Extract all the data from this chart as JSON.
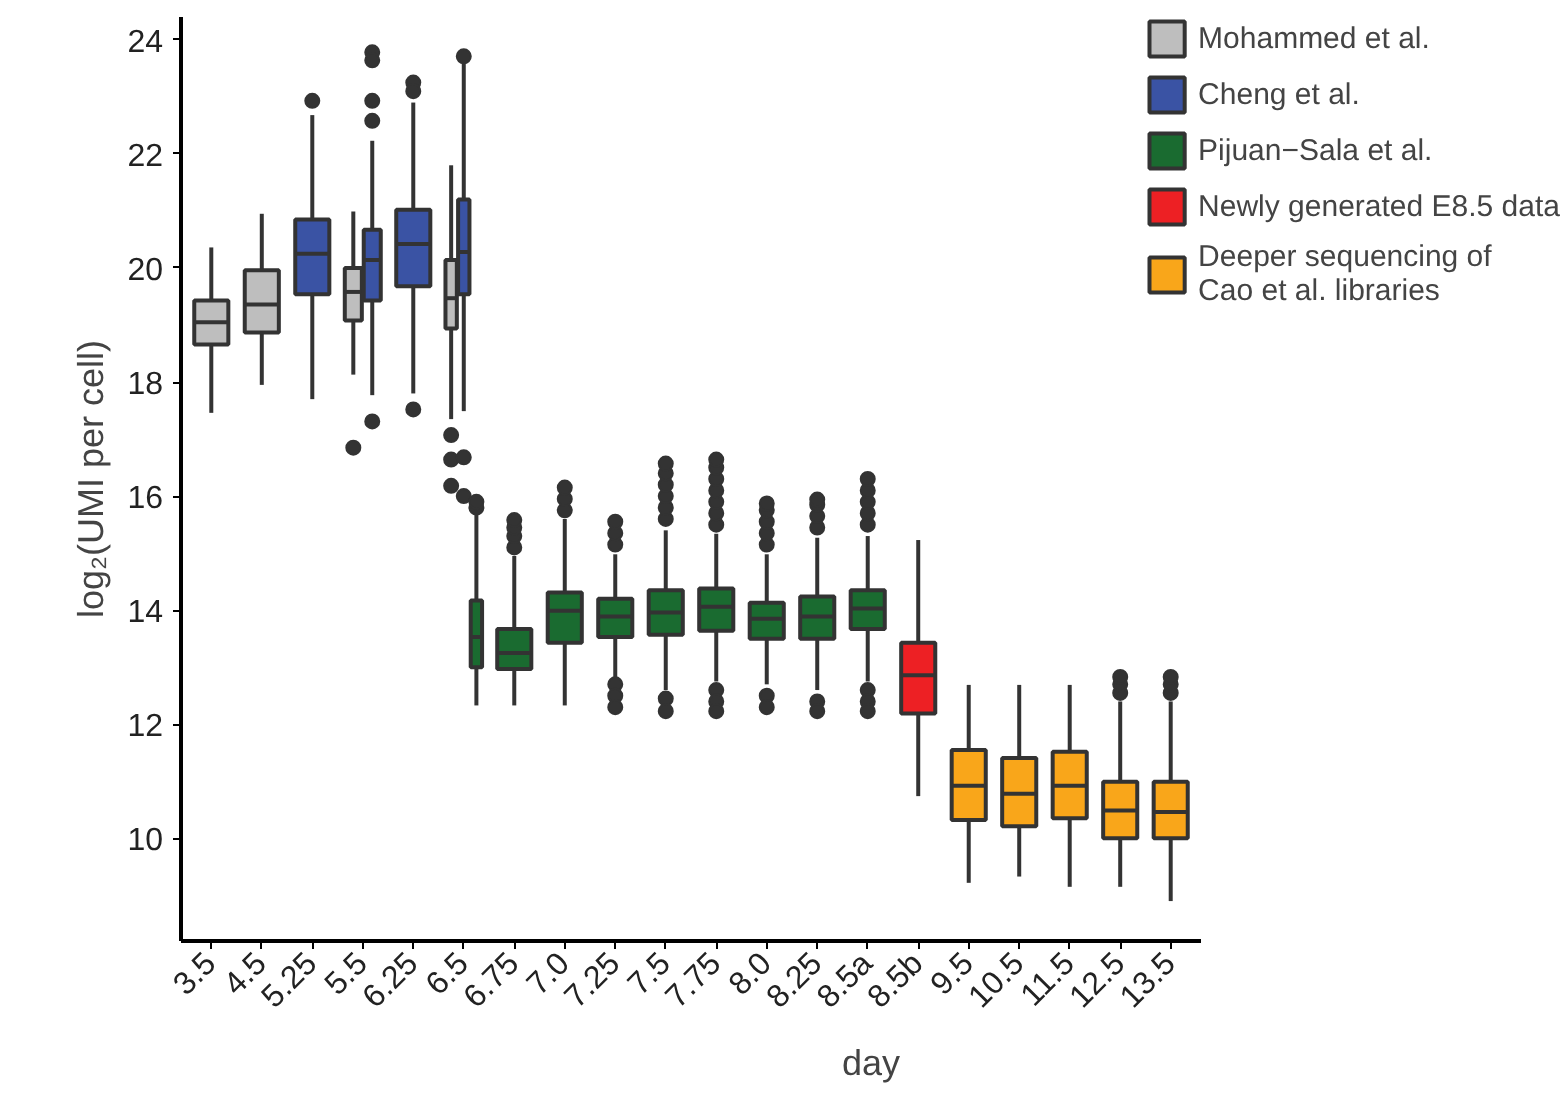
{
  "chart_data": {
    "type": "box",
    "xlabel": "day",
    "ylabel": "log₂(UMI per cell)",
    "categories": [
      "3.5",
      "4.5",
      "5.25",
      "5.5",
      "6.25",
      "6.5",
      "6.75",
      "7.0",
      "7.25",
      "7.5",
      "7.75",
      "8.0",
      "8.25",
      "8.5a",
      "8.5b",
      "9.5",
      "10.5",
      "11.5",
      "12.5",
      "13.5"
    ],
    "ylim": [
      8.2,
      24.4
    ],
    "yticks": [
      10,
      12,
      14,
      16,
      18,
      20,
      22,
      24
    ],
    "grid": false,
    "legend": "right",
    "series": [
      {
        "name": "Mohammed et al.",
        "color": "#bebebe",
        "boxes": [
          {
            "low": 17.46,
            "q1": 18.66,
            "median": 19.05,
            "q3": 19.43,
            "high": 20.36
          },
          {
            "low": 17.95,
            "q1": 18.87,
            "median": 19.36,
            "q3": 19.96,
            "high": 20.95
          },
          null,
          {
            "low": 18.13,
            "q1": 19.08,
            "median": 19.58,
            "q3": 20.0,
            "high": 20.99,
            "outliers": [
              16.85
            ]
          },
          null,
          {
            "low": 17.35,
            "q1": 18.94,
            "median": 19.47,
            "q3": 20.14,
            "high": 21.8,
            "outliers": [
              17.07,
              16.64,
              16.18
            ]
          },
          null,
          null,
          null,
          null,
          null,
          null,
          null,
          null,
          null,
          null,
          null,
          null,
          null,
          null
        ]
      },
      {
        "name": "Cheng et al.",
        "color": "#3a53a4",
        "boxes": [
          null,
          null,
          {
            "low": 17.7,
            "q1": 19.54,
            "median": 20.25,
            "q3": 20.85,
            "high": 22.68,
            "outliers": [
              22.93
            ]
          },
          {
            "low": 17.77,
            "q1": 19.43,
            "median": 20.14,
            "q3": 20.67,
            "high": 22.23,
            "outliers": [
              23.78,
              23.64,
              22.93,
              22.58,
              17.31
            ]
          },
          {
            "low": 17.8,
            "q1": 19.68,
            "median": 20.42,
            "q3": 21.02,
            "high": 22.9,
            "outliers": [
              23.25,
              23.1,
              17.52
            ]
          },
          {
            "low": 17.49,
            "q1": 19.54,
            "median": 20.28,
            "q3": 21.2,
            "high": 23.6,
            "outliers": [
              23.71,
              16.68,
              16.0
            ]
          },
          null,
          null,
          null,
          null,
          null,
          null,
          null,
          null,
          null,
          null,
          null,
          null,
          null,
          null
        ]
      },
      {
        "name": "Pijuan−Sala et al.",
        "color": "#1a6b30",
        "boxes": [
          null,
          null,
          null,
          null,
          null,
          {
            "low": 12.33,
            "q1": 13.0,
            "median": 13.53,
            "q3": 14.17,
            "high": 15.69,
            "outliers": [
              15.8,
              15.9
            ]
          },
          {
            "low": 12.33,
            "q1": 12.97,
            "median": 13.25,
            "q3": 13.67,
            "high": 14.95,
            "outliers": [
              15.1,
              15.3,
              15.45,
              15.58
            ]
          },
          {
            "low": 12.33,
            "q1": 13.43,
            "median": 13.99,
            "q3": 14.31,
            "high": 15.6,
            "outliers": [
              15.75,
              15.95,
              16.15
            ]
          },
          {
            "low": 12.8,
            "q1": 13.53,
            "median": 13.89,
            "q3": 14.2,
            "high": 14.98,
            "outliers": [
              15.15,
              15.35,
              15.55,
              12.7,
              12.5,
              12.3
            ]
          },
          {
            "low": 12.6,
            "q1": 13.57,
            "median": 13.96,
            "q3": 14.35,
            "high": 15.4,
            "outliers": [
              15.6,
              15.8,
              16.0,
              16.2,
              16.4,
              16.57,
              12.45,
              12.23
            ]
          },
          {
            "low": 12.75,
            "q1": 13.64,
            "median": 14.06,
            "q3": 14.38,
            "high": 15.34,
            "outliers": [
              15.5,
              15.7,
              15.9,
              16.1,
              16.3,
              16.5,
              16.64,
              12.6,
              12.4,
              12.23
            ]
          },
          {
            "low": 12.7,
            "q1": 13.5,
            "median": 13.85,
            "q3": 14.13,
            "high": 14.98,
            "outliers": [
              15.15,
              15.35,
              15.55,
              15.75,
              15.87,
              12.5,
              12.3
            ]
          },
          {
            "low": 12.6,
            "q1": 13.5,
            "median": 13.89,
            "q3": 14.24,
            "high": 15.27,
            "outliers": [
              15.45,
              15.65,
              15.85,
              15.94,
              12.4,
              12.23
            ]
          },
          {
            "low": 12.75,
            "q1": 13.67,
            "median": 14.03,
            "q3": 14.35,
            "high": 15.3,
            "outliers": [
              15.5,
              15.7,
              15.9,
              16.1,
              16.3,
              12.6,
              12.4,
              12.23
            ]
          },
          null,
          null,
          null,
          null,
          null,
          null
        ]
      },
      {
        "name": "Newly generated E8.5 data",
        "color": "#ed2024",
        "boxes": [
          null,
          null,
          null,
          null,
          null,
          null,
          null,
          null,
          null,
          null,
          null,
          null,
          null,
          null,
          {
            "low": 10.74,
            "q1": 12.19,
            "median": 12.86,
            "q3": 13.43,
            "high": 15.23
          },
          null,
          null,
          null,
          null,
          null
        ]
      },
      {
        "name": "Deeper sequencing of\nCao et al. libraries",
        "color": "#f9a61a",
        "boxes": [
          null,
          null,
          null,
          null,
          null,
          null,
          null,
          null,
          null,
          null,
          null,
          null,
          null,
          null,
          null,
          {
            "low": 9.22,
            "q1": 10.32,
            "median": 10.92,
            "q3": 11.55,
            "high": 12.69
          },
          {
            "low": 9.33,
            "q1": 10.21,
            "median": 10.78,
            "q3": 11.41,
            "high": 12.69
          },
          {
            "low": 9.15,
            "q1": 10.35,
            "median": 10.92,
            "q3": 11.52,
            "high": 12.69
          },
          {
            "low": 9.15,
            "q1": 10.0,
            "median": 10.49,
            "q3": 10.99,
            "high": 12.4,
            "outliers": [
              12.55,
              12.7,
              12.83
            ]
          },
          {
            "low": 8.9,
            "q1": 10.0,
            "median": 10.46,
            "q3": 10.99,
            "high": 12.4,
            "outliers": [
              12.55,
              12.7,
              12.83
            ]
          }
        ]
      }
    ]
  }
}
